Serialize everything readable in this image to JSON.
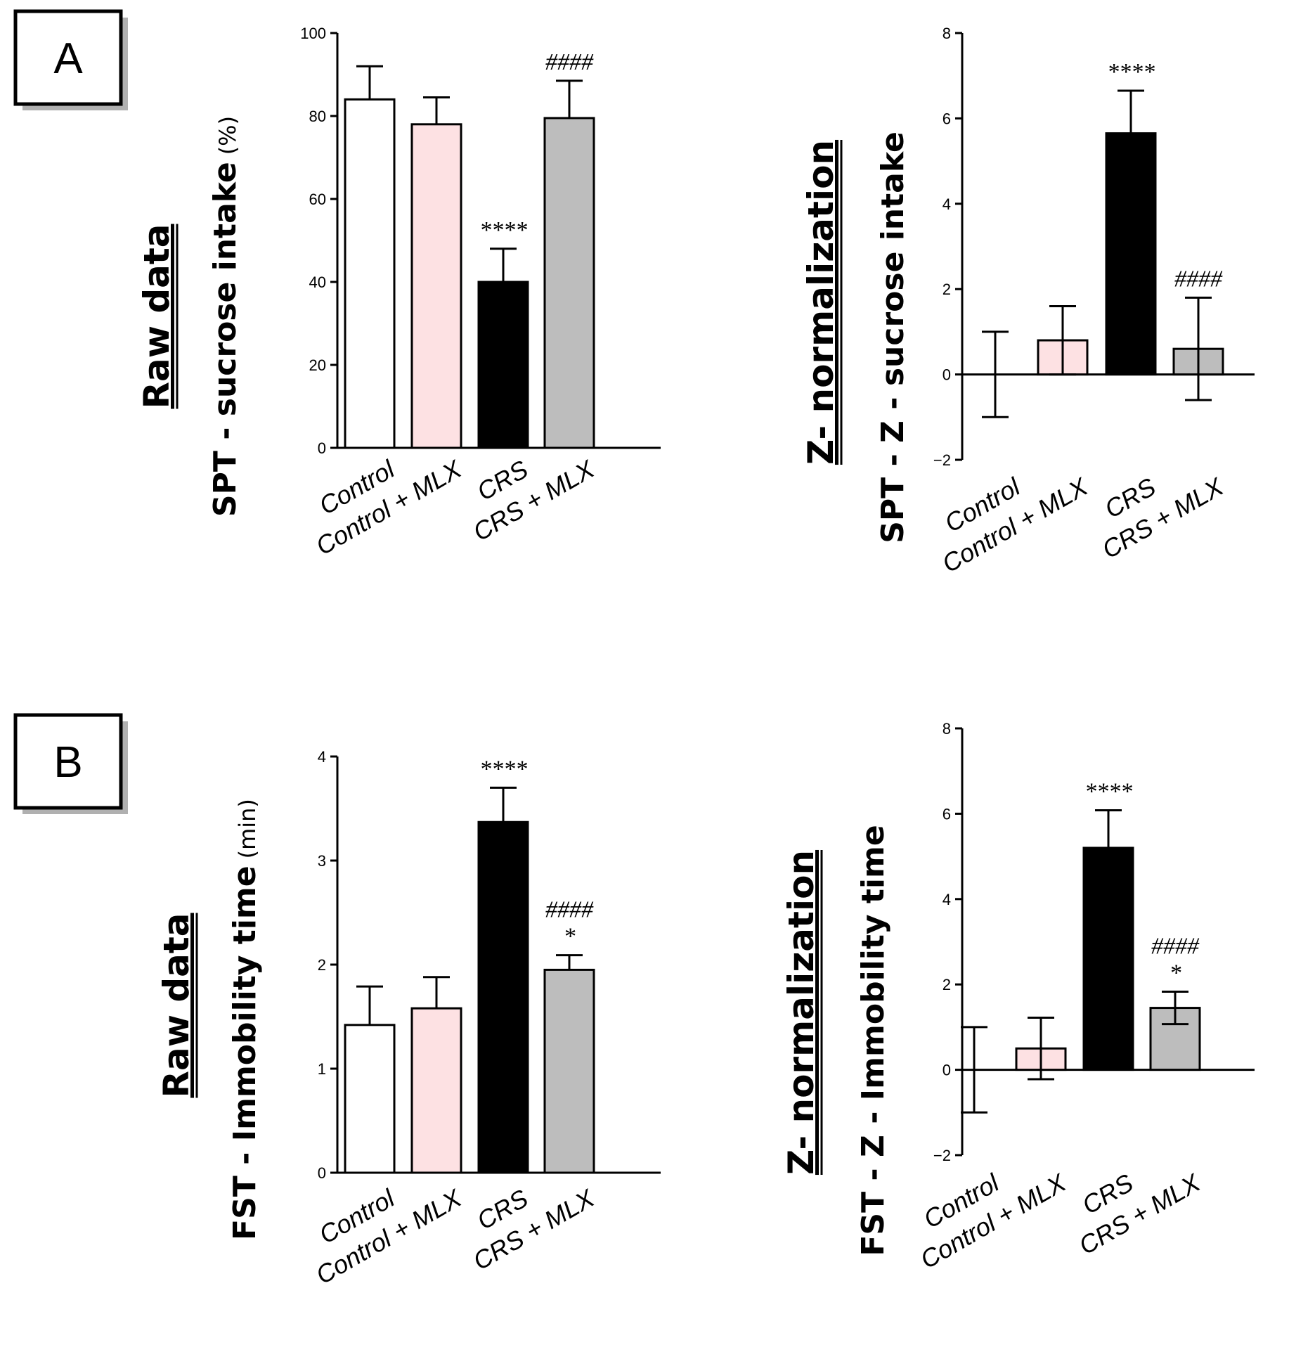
{
  "panels": [
    {
      "letter": "A"
    },
    {
      "letter": "B"
    }
  ],
  "chart_data": [
    {
      "type": "bar",
      "title": "Raw data",
      "ylabel": "SPT - sucrose intake",
      "ylabel_unit": "(%)",
      "categories": [
        "Control",
        "Control + MLX",
        "CRS",
        "CRS + MLX"
      ],
      "values": [
        84,
        78,
        40,
        79.5
      ],
      "errors": [
        8,
        6.5,
        8,
        9
      ],
      "error_style": "upper",
      "colors": [
        "#ffffff",
        "#fde1e3",
        "#000000",
        "#bdbdbd"
      ],
      "ylim": [
        0,
        100
      ],
      "yticks": [
        0,
        20,
        40,
        60,
        80,
        100
      ],
      "annotations": [
        {
          "category_index": 2,
          "lines": [
            "****"
          ]
        },
        {
          "category_index": 3,
          "lines": [
            "####"
          ]
        }
      ]
    },
    {
      "type": "bar",
      "title": "Z- normalization",
      "ylabel": "SPT - Z - sucrose intake",
      "ylabel_unit": "",
      "categories": [
        "Control",
        "Control + MLX",
        "CRS",
        "CRS + MLX"
      ],
      "values": [
        0,
        0.8,
        5.65,
        0.6
      ],
      "errors": [
        1,
        0.8,
        1,
        1.2
      ],
      "error_style": "both",
      "colors": [
        "#ffffff",
        "#fde1e3",
        "#000000",
        "#bdbdbd"
      ],
      "ylim": [
        -2,
        8
      ],
      "yticks": [
        -2,
        0,
        2,
        4,
        6,
        8
      ],
      "tick_labels": [
        "−2",
        "0",
        "2",
        "4",
        "6",
        "8"
      ],
      "annotations": [
        {
          "category_index": 2,
          "lines": [
            "****"
          ]
        },
        {
          "category_index": 3,
          "lines": [
            "####"
          ]
        }
      ]
    },
    {
      "type": "bar",
      "title": "Raw data",
      "ylabel": "FST - Immobility time",
      "ylabel_unit": "(min)",
      "categories": [
        "Control",
        "Control + MLX",
        "CRS",
        "CRS + MLX"
      ],
      "values": [
        1.42,
        1.58,
        3.37,
        1.95
      ],
      "errors": [
        0.37,
        0.3,
        0.33,
        0.14
      ],
      "error_style": "upper",
      "colors": [
        "#ffffff",
        "#fde1e3",
        "#000000",
        "#bdbdbd"
      ],
      "ylim": [
        0,
        4
      ],
      "yticks": [
        0,
        1,
        2,
        3,
        4
      ],
      "annotations": [
        {
          "category_index": 2,
          "lines": [
            "****"
          ]
        },
        {
          "category_index": 3,
          "lines": [
            "####",
            "*"
          ]
        }
      ]
    },
    {
      "type": "bar",
      "title": "Z- normalization",
      "ylabel": "FST - Z - Immobility time",
      "ylabel_unit": "",
      "categories": [
        "Control",
        "Control + MLX",
        "CRS",
        "CRS + MLX"
      ],
      "values": [
        0,
        0.5,
        5.2,
        1.45
      ],
      "errors": [
        1,
        0.72,
        0.88,
        0.38
      ],
      "error_style": "both",
      "colors": [
        "#ffffff",
        "#fde1e3",
        "#000000",
        "#bdbdbd"
      ],
      "ylim": [
        -2,
        8
      ],
      "yticks": [
        -2,
        0,
        2,
        4,
        6,
        8
      ],
      "tick_labels": [
        "−2",
        "0",
        "2",
        "4",
        "6",
        "8"
      ],
      "annotations": [
        {
          "category_index": 2,
          "lines": [
            "****"
          ]
        },
        {
          "category_index": 3,
          "lines": [
            "####",
            "*"
          ]
        }
      ]
    }
  ]
}
